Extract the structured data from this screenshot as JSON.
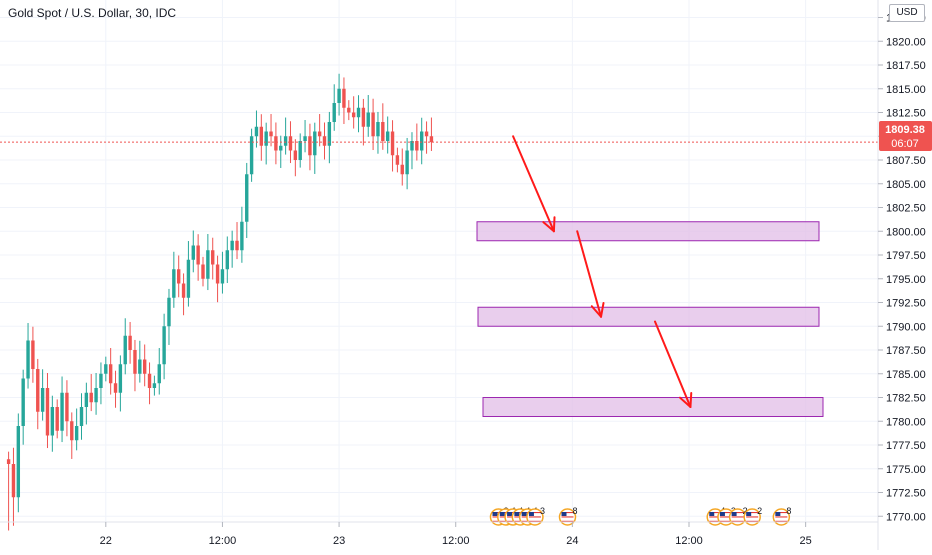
{
  "legend": {
    "title": "Gold Spot / U.S. Dollar, 30, IDC"
  },
  "currency_label": "USD",
  "price_tag": {
    "price": "1809.38",
    "countdown": "06:07",
    "color": "#ef5350"
  },
  "colors": {
    "up": "#26a69a",
    "down": "#ef5350",
    "grid": "#f0f3fa",
    "axis_text": "#131722",
    "zone_fill": "#e1bee7",
    "zone_stroke": "#9c27b0",
    "arrow": "#ff1a1a"
  },
  "chart_data": {
    "type": "candlestick",
    "ylim": [
      1767.5,
      1823.5
    ],
    "y_ticks": [
      "1770.00",
      "1772.50",
      "1775.00",
      "1777.50",
      "1780.00",
      "1782.50",
      "1785.00",
      "1787.50",
      "1790.00",
      "1792.50",
      "1795.00",
      "1797.50",
      "1800.00",
      "1802.50",
      "1805.00",
      "1807.50",
      "1810.00",
      "1812.50",
      "1815.00",
      "1817.50",
      "1820.00",
      "1822.50"
    ],
    "x_ticks": [
      {
        "label": "22",
        "t": 20
      },
      {
        "label": "12:00",
        "t": 44
      },
      {
        "label": "23",
        "t": 68
      },
      {
        "label": "12:00",
        "t": 92
      },
      {
        "label": "24",
        "t": 116
      },
      {
        "label": "12:00",
        "t": 140
      },
      {
        "label": "25",
        "t": 164
      }
    ],
    "closes": [
      1775.5,
      1772.0,
      1779.5,
      1784.5,
      1788.5,
      1785.5,
      1781.0,
      1783.5,
      1778.5,
      1781.5,
      1779.0,
      1783.0,
      1780.0,
      1778.0,
      1779.5,
      1781.5,
      1783.0,
      1782.0,
      1783.5,
      1785.0,
      1786.0,
      1784.0,
      1783.0,
      1786.0,
      1789.0,
      1787.5,
      1785.0,
      1786.5,
      1785.0,
      1783.5,
      1784.0,
      1786.0,
      1790.0,
      1793.0,
      1796.0,
      1794.5,
      1793.0,
      1797.0,
      1798.5,
      1796.5,
      1795.0,
      1798.0,
      1796.5,
      1794.5,
      1796.0,
      1798.0,
      1799.0,
      1798.0,
      1801.0,
      1806.0,
      1810.0,
      1811.0,
      1809.0,
      1810.5,
      1810.0,
      1808.5,
      1809.0,
      1810.0,
      1808.5,
      1807.5,
      1809.5,
      1810.0,
      1808.0,
      1810.5,
      1810.0,
      1809.0,
      1811.5,
      1813.5,
      1815.0,
      1813.0,
      1812.5,
      1812.0,
      1813.0,
      1811.0,
      1812.5,
      1810.0,
      1811.5,
      1809.5,
      1810.5,
      1808.0,
      1807.0,
      1806.0,
      1808.5,
      1809.5,
      1808.5,
      1810.5,
      1810.0,
      1809.38
    ],
    "price_zones": [
      {
        "top": 1801.0,
        "bottom": 1799.0
      },
      {
        "top": 1792.0,
        "bottom": 1790.0
      },
      {
        "top": 1782.5,
        "bottom": 1780.5
      }
    ],
    "arrows": [
      {
        "from": [
          103.8,
          1810.0
        ],
        "to": [
          112.2,
          1800.0
        ]
      },
      {
        "from": [
          117.0,
          1800.0
        ],
        "to": [
          121.9,
          1791.0
        ]
      },
      {
        "from": [
          133.0,
          1790.5
        ],
        "to": [
          140.3,
          1781.5
        ]
      }
    ],
    "events": [
      {
        "t": 100.8,
        "label": "2"
      },
      {
        "t": 102.3,
        "label": "4"
      },
      {
        "t": 103.8,
        "label": "4"
      },
      {
        "t": 105.3,
        "label": "4"
      },
      {
        "t": 106.8,
        "label": "4"
      },
      {
        "t": 108.3,
        "label": "3"
      },
      {
        "t": 115.0,
        "label": "8"
      },
      {
        "t": 145.4,
        "label": "4"
      },
      {
        "t": 147.6,
        "label": "2"
      },
      {
        "t": 150.0,
        "label": "2"
      },
      {
        "t": 153.0,
        "label": "2"
      },
      {
        "t": 159.0,
        "label": "8"
      }
    ]
  }
}
